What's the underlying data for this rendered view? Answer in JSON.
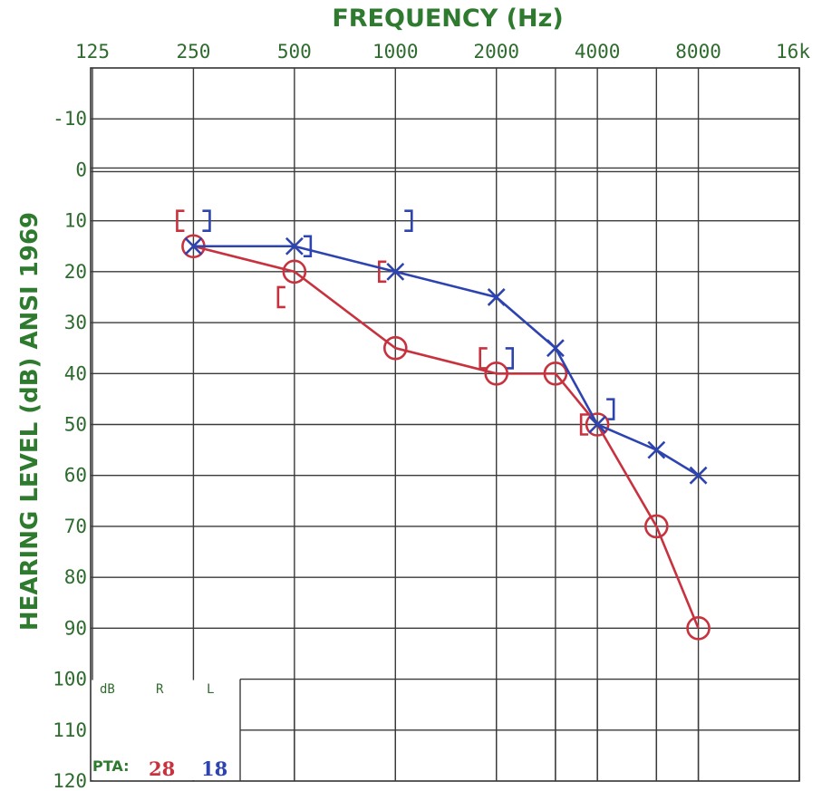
{
  "chart_data": {
    "type": "line",
    "title": "FREQUENCY (Hz)",
    "xlabel": "FREQUENCY (Hz)",
    "ylabel": "HEARING LEVEL (dB) ANSI 1969",
    "x_scale": "log2",
    "x_ticks": [
      "125",
      "250",
      "500",
      "1000",
      "2000",
      "4000",
      "8000",
      "16k"
    ],
    "x_tick_values": [
      125,
      250,
      500,
      1000,
      2000,
      4000,
      8000,
      16000
    ],
    "x_intermediate": [
      3000,
      6000
    ],
    "ylim": [
      -20,
      120
    ],
    "y_inverted": true,
    "y_ticks": [
      "-10",
      "0",
      "10",
      "20",
      "30",
      "40",
      "50",
      "60",
      "70",
      "80",
      "90",
      "100",
      "110",
      "120"
    ],
    "y_tick_values": [
      -10,
      0,
      10,
      20,
      30,
      40,
      50,
      60,
      70,
      80,
      90,
      100,
      110,
      120
    ],
    "grid": true,
    "series": [
      {
        "symbol": "circle",
        "color": "#c8323f",
        "x": [
          250,
          500,
          1000,
          2000,
          3000,
          4000,
          6000,
          8000
        ],
        "y": [
          15,
          20,
          35,
          40,
          40,
          50,
          70,
          90
        ]
      },
      {
        "symbol": "cross",
        "color": "#2d43b0",
        "x": [
          250,
          500,
          1000,
          2000,
          3000,
          4000,
          6000,
          8000
        ],
        "y": [
          15,
          15,
          20,
          25,
          35,
          50,
          55,
          60
        ]
      }
    ],
    "bone_conduction": [
      {
        "symbol": "bracket-left",
        "color": "#c8323f",
        "x": [
          250,
          500,
          1000,
          2000,
          4000
        ],
        "y": [
          10,
          25,
          20,
          37,
          50
        ]
      },
      {
        "symbol": "bracket-right",
        "color": "#2d43b0",
        "x": [
          250,
          500,
          1000,
          2000,
          4000
        ],
        "y": [
          10,
          15,
          10,
          37,
          47
        ]
      }
    ],
    "legend_table": {
      "headers": [
        "dB",
        "R",
        "L"
      ],
      "pta_label": "PTA:",
      "pta_right": "28",
      "pta_left": "18",
      "pta_right_color": "#c8323f",
      "pta_left_color": "#2d43b0"
    }
  }
}
